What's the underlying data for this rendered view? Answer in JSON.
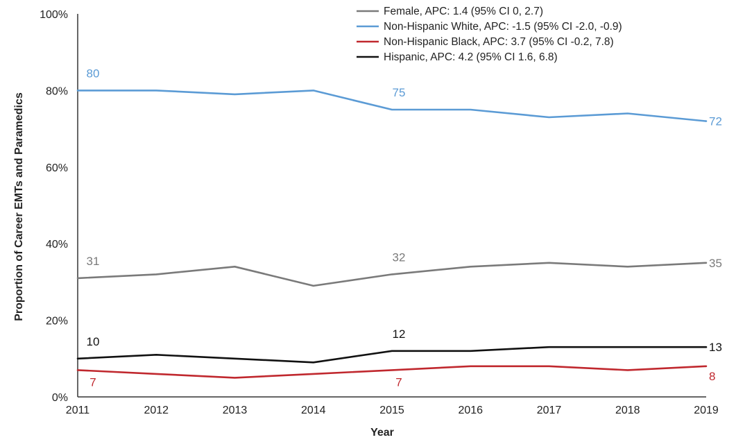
{
  "chart_data": {
    "type": "line",
    "title": "",
    "xlabel": "Year",
    "ylabel": "Proportion of Career EMTs and Paramedics",
    "x": [
      "2011",
      "2012",
      "2013",
      "2014",
      "2015",
      "2016",
      "2017",
      "2018",
      "2019"
    ],
    "ylim": [
      0,
      100
    ],
    "yticks": [
      0,
      20,
      40,
      60,
      80,
      100
    ],
    "ytick_labels": [
      "0%",
      "20%",
      "40%",
      "60%",
      "80%",
      "100%"
    ],
    "grid": false,
    "legend_position": "top-right",
    "series": [
      {
        "name": "Female, APC: 1.4 (95% CI 0, 2.7)",
        "color": "#7a7a7a",
        "values": [
          31,
          32,
          34,
          29,
          32,
          34,
          35,
          34,
          35
        ],
        "labels": [
          {
            "index": 0,
            "text": "31"
          },
          {
            "index": 4,
            "text": "32"
          },
          {
            "index": 8,
            "text": "35"
          }
        ]
      },
      {
        "name": "Non-Hispanic White, APC: -1.5 (95% CI -2.0, -0.9)",
        "color": "#5b9bd5",
        "values": [
          80,
          80,
          79,
          80,
          75,
          75,
          73,
          74,
          72
        ],
        "labels": [
          {
            "index": 0,
            "text": "80"
          },
          {
            "index": 4,
            "text": "75"
          },
          {
            "index": 8,
            "text": "72"
          }
        ]
      },
      {
        "name": "Non-Hispanic Black, APC: 3.7 (95% CI -0.2, 7.8)",
        "color": "#c0282e",
        "values": [
          7,
          6,
          5,
          6,
          7,
          8,
          8,
          7,
          8
        ],
        "labels": [
          {
            "index": 0,
            "text": "7"
          },
          {
            "index": 4,
            "text": "7"
          },
          {
            "index": 8,
            "text": "8"
          }
        ]
      },
      {
        "name": "Hispanic, APC: 4.2 (95% CI 1.6, 6.8)",
        "color": "#111111",
        "values": [
          10,
          11,
          10,
          9,
          12,
          12,
          13,
          13,
          13
        ],
        "labels": [
          {
            "index": 0,
            "text": "10"
          },
          {
            "index": 4,
            "text": "12"
          },
          {
            "index": 8,
            "text": "13"
          }
        ]
      }
    ]
  }
}
